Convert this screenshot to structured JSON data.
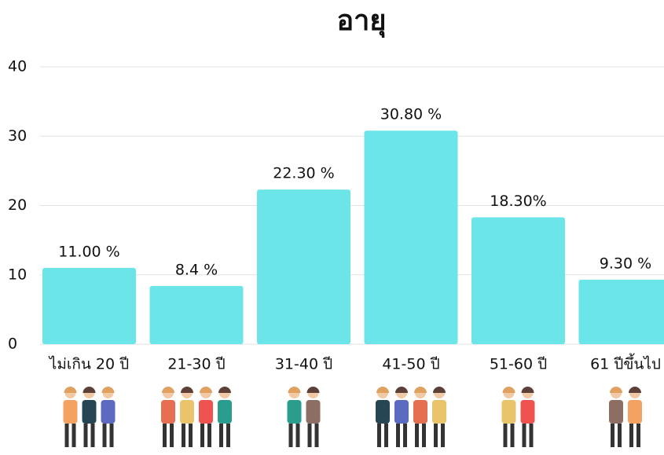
{
  "chart_data": {
    "type": "bar",
    "title": "อายุ",
    "categories": [
      "ไม่เกิน 20 ปี",
      "21-30 ปี",
      "31-40 ปี",
      "41-50 ปี",
      "51-60 ปี",
      "61 ปีขึ้นไป"
    ],
    "values": [
      11.0,
      8.4,
      22.3,
      30.8,
      18.3,
      9.3
    ],
    "value_labels": [
      "11.00 %",
      "8.4 %",
      "22.30 %",
      "30.80 %",
      "18.30%",
      "9.30 %"
    ],
    "color": "#6ce5e8",
    "ylim": [
      0,
      40
    ],
    "yticks": [
      0,
      10,
      20,
      30,
      40
    ],
    "grid": true
  }
}
